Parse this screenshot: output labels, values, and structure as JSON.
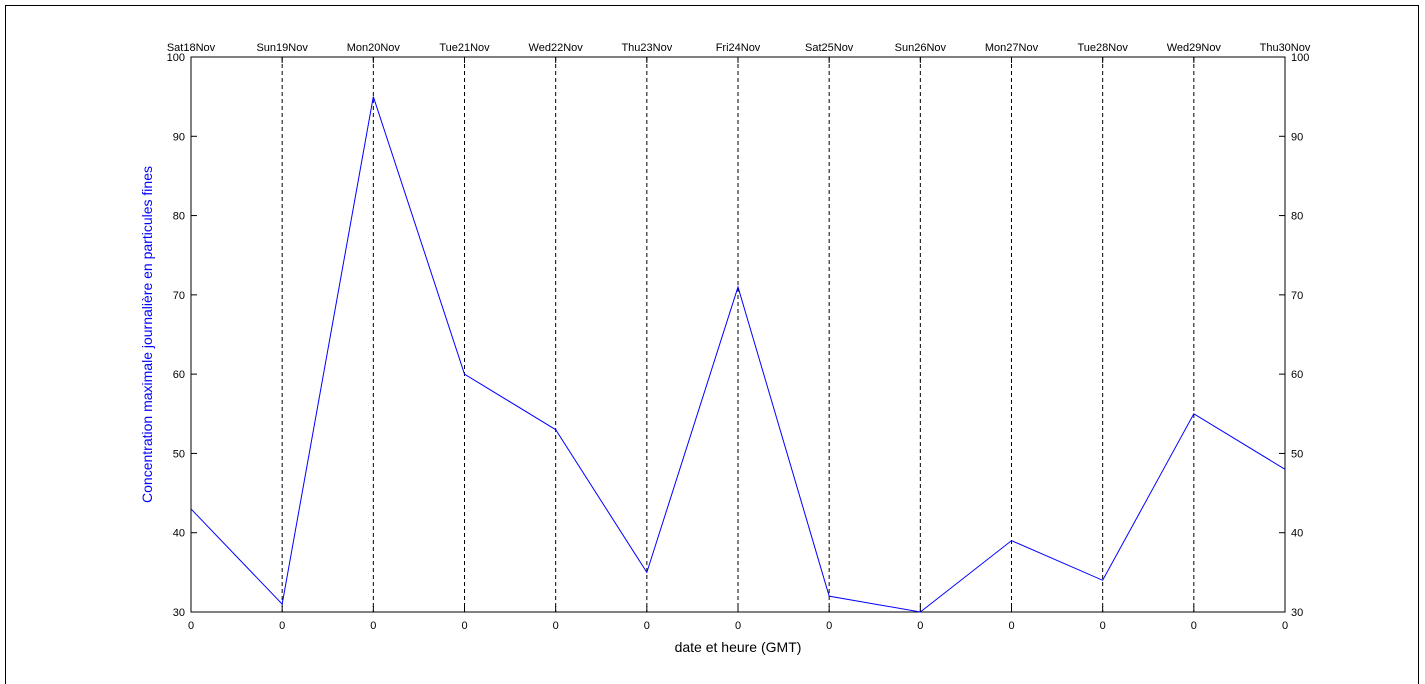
{
  "chart_data": {
    "type": "line",
    "categories": [
      "Sat18Nov",
      "Sun19Nov",
      "Mon20Nov",
      "Tue21Nov",
      "Wed22Nov",
      "Thu23Nov",
      "Fri24Nov",
      "Sat25Nov",
      "Sun26Nov",
      "Mon27Nov",
      "Tue28Nov",
      "Wed29Nov",
      "Thu30Nov"
    ],
    "bottom_tick_labels": [
      "0",
      "0",
      "0",
      "0",
      "0",
      "0",
      "0",
      "0",
      "0",
      "0",
      "0",
      "0",
      "0"
    ],
    "series": [
      {
        "values": [
          43,
          31,
          95,
          60,
          53,
          35,
          71,
          32,
          30,
          39,
          34,
          55,
          48
        ],
        "color": "#0000ff"
      }
    ],
    "xlabel": "date et heure (GMT)",
    "ylabel": "Concentration maximale journalière en particules fines",
    "ylabel_color": "#0000ff",
    "ylim": [
      30,
      100
    ],
    "yticks": [
      30,
      40,
      50,
      60,
      70,
      80,
      90,
      100
    ],
    "vertical_gridlines": "dashed",
    "right_axis_mirrors_left": true
  }
}
